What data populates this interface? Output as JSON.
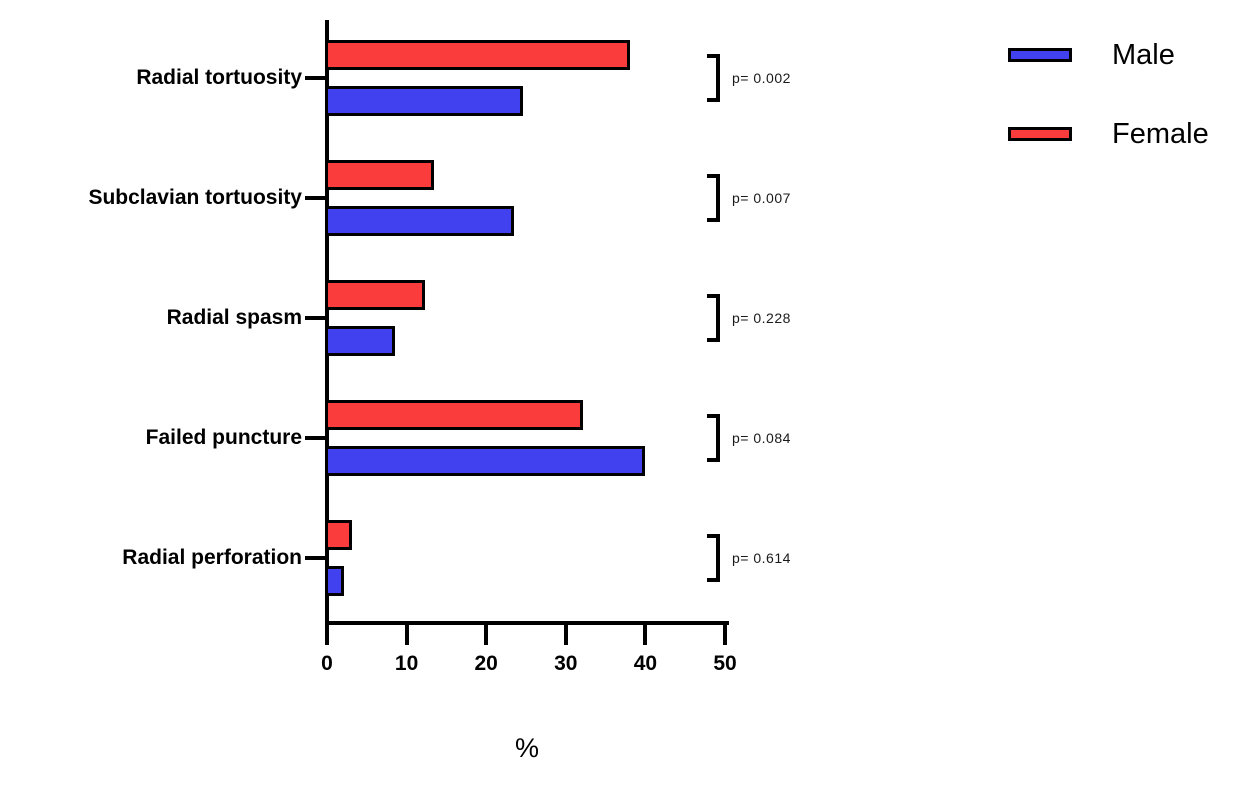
{
  "chart_data": {
    "type": "bar",
    "orientation": "horizontal",
    "title": "",
    "xlabel": "%",
    "xlim": [
      0,
      50
    ],
    "xticks": [
      "0",
      "10",
      "20",
      "30",
      "40",
      "50"
    ],
    "grid": false,
    "categories": [
      "Radial tortuosity",
      "Subclavian tortuosity",
      "Radial spasm",
      "Failed puncture",
      "Radial perforation"
    ],
    "series": [
      {
        "name": "Male",
        "color": "#4141F0",
        "values": [
          24.6,
          23.5,
          8.6,
          40.0,
          2.1
        ]
      },
      {
        "name": "Female",
        "color": "#FA3C3C",
        "values": [
          38.1,
          13.4,
          12.3,
          32.1,
          3.1
        ]
      }
    ],
    "bar_order_top_to_bottom_within_group": [
      "Female",
      "Male"
    ],
    "p_values": [
      "p= 0.002",
      "p= 0.007",
      "p= 0.228",
      "p= 0.084",
      "p= 0.614"
    ],
    "legend": {
      "position": "top-right",
      "entries": [
        "Male",
        "Female"
      ]
    },
    "axis_color": "#000000",
    "bar_border_color": "#000000"
  }
}
